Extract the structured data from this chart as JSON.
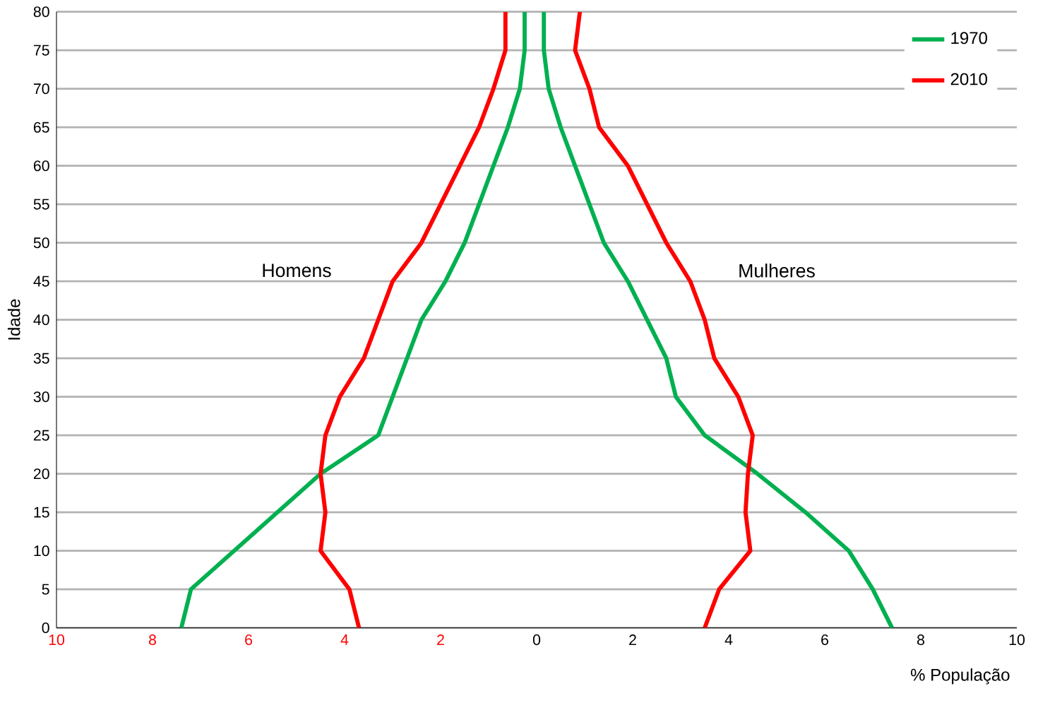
{
  "chart_data": {
    "type": "line",
    "xlabel": "% População",
    "ylabel": "Idade",
    "annotations": [
      "Homens",
      "Mulheres"
    ],
    "xlim": [
      -10,
      10
    ],
    "xticks": [
      {
        "value": -10,
        "label": "10"
      },
      {
        "value": -8,
        "label": "8"
      },
      {
        "value": -6,
        "label": "6"
      },
      {
        "value": -4,
        "label": "4"
      },
      {
        "value": -2,
        "label": "2"
      },
      0,
      2,
      4,
      6,
      8,
      10
    ],
    "ylim": [
      0,
      80
    ],
    "yticks": [
      0,
      5,
      10,
      15,
      20,
      25,
      30,
      35,
      40,
      45,
      50,
      55,
      60,
      65,
      70,
      75,
      80
    ],
    "grid": "y",
    "legend": "top right",
    "marker": "none",
    "line_style": "solid",
    "series": [
      {
        "name": "1970",
        "color": "#00b050",
        "x": [
          -7.4,
          -7.2,
          -6.3,
          -5.4,
          -4.5,
          -3.3,
          -3.0,
          -2.7,
          -2.4,
          -1.9,
          -1.5,
          -1.2,
          -0.9,
          -0.6,
          -0.35,
          -0.25,
          -0.25
        ],
        "values": [
          0,
          5,
          10,
          15,
          20,
          25,
          30,
          35,
          40,
          45,
          50,
          55,
          60,
          65,
          70,
          75,
          80
        ]
      },
      {
        "name": "2010",
        "color": "#ff0000",
        "x": [
          -3.7,
          -3.9,
          -4.5,
          -4.4,
          -4.5,
          -4.4,
          -4.1,
          -3.6,
          -3.3,
          -3.0,
          -2.4,
          -2.0,
          -1.6,
          -1.2,
          -0.9,
          -0.65,
          -0.65
        ],
        "values": [
          0,
          5,
          10,
          15,
          20,
          25,
          30,
          35,
          40,
          45,
          50,
          55,
          60,
          65,
          70,
          75,
          80
        ]
      },
      {
        "color": "#00b050",
        "x": [
          7.4,
          7.0,
          6.5,
          5.6,
          4.6,
          3.5,
          2.9,
          2.7,
          2.3,
          1.9,
          1.4,
          1.1,
          0.8,
          0.5,
          0.25,
          0.15,
          0.15
        ],
        "values": [
          0,
          5,
          10,
          15,
          20,
          25,
          30,
          35,
          40,
          45,
          50,
          55,
          60,
          65,
          70,
          75,
          80
        ]
      },
      {
        "color": "#ff0000",
        "x": [
          3.5,
          3.8,
          4.45,
          4.35,
          4.4,
          4.5,
          4.2,
          3.7,
          3.5,
          3.2,
          2.7,
          2.3,
          1.9,
          1.3,
          1.1,
          0.8,
          0.9
        ],
        "values": [
          0,
          5,
          10,
          15,
          20,
          25,
          30,
          35,
          40,
          45,
          50,
          55,
          60,
          65,
          70,
          75,
          80
        ]
      }
    ]
  }
}
